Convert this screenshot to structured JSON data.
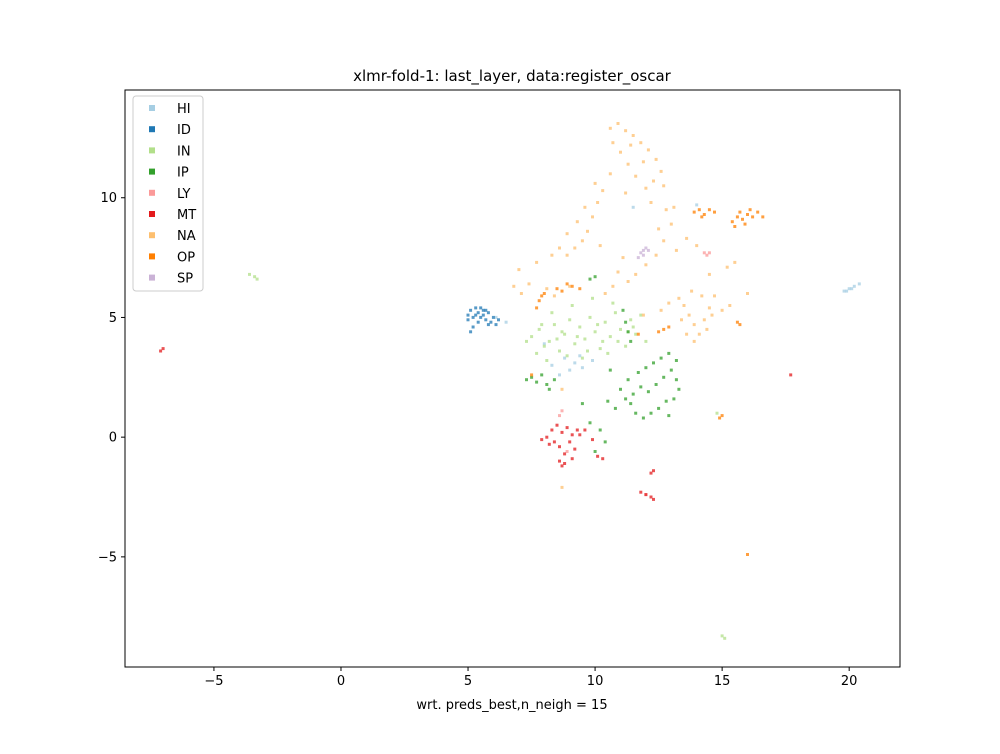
{
  "chart_data": {
    "type": "scatter",
    "title": "xlmr-fold-1: last_layer, data:register_oscar",
    "xlabel": "wrt. preds_best,n_neigh = 15",
    "ylabel": "",
    "xlim": [
      -8.5,
      22.0
    ],
    "ylim": [
      -9.6,
      14.5
    ],
    "xticks": [
      -5,
      0,
      5,
      10,
      15,
      20
    ],
    "xtick_labels": [
      "−5",
      "0",
      "5",
      "10",
      "15",
      "20"
    ],
    "yticks": [
      -5,
      0,
      5,
      10
    ],
    "ytick_labels": [
      "−5",
      "0",
      "5",
      "10"
    ],
    "grid": false,
    "legend_position": "top-left",
    "series": [
      {
        "name": "HI",
        "color": "#a6cee3",
        "points": [
          [
            9.2,
            3.1
          ],
          [
            9.5,
            2.9
          ],
          [
            8.8,
            3.3
          ],
          [
            9.0,
            2.8
          ],
          [
            9.4,
            3.4
          ],
          [
            8.3,
            3.0
          ],
          [
            9.9,
            3.2
          ],
          [
            11.5,
            9.6
          ],
          [
            14.0,
            9.7
          ],
          [
            19.8,
            6.1
          ],
          [
            20.0,
            6.2
          ],
          [
            20.2,
            6.3
          ],
          [
            20.4,
            6.4
          ],
          [
            20.1,
            6.2
          ],
          [
            19.9,
            6.1
          ],
          [
            6.1,
            5.0
          ],
          [
            6.5,
            4.8
          ],
          [
            8.0,
            3.9
          ],
          [
            8.6,
            2.6
          ]
        ]
      },
      {
        "name": "ID",
        "color": "#1f78b4",
        "points": [
          [
            5.0,
            5.1
          ],
          [
            5.1,
            5.3
          ],
          [
            5.2,
            5.0
          ],
          [
            5.3,
            5.4
          ],
          [
            5.4,
            5.2
          ],
          [
            5.5,
            5.4
          ],
          [
            5.6,
            5.1
          ],
          [
            5.7,
            4.9
          ],
          [
            5.8,
            5.2
          ],
          [
            5.9,
            4.8
          ],
          [
            6.0,
            5.0
          ],
          [
            6.1,
            4.7
          ],
          [
            5.2,
            4.6
          ],
          [
            5.1,
            4.4
          ],
          [
            5.4,
            4.8
          ],
          [
            5.3,
            5.1
          ],
          [
            5.6,
            5.3
          ],
          [
            5.8,
            4.7
          ],
          [
            5.0,
            4.9
          ],
          [
            6.2,
            4.9
          ],
          [
            5.5,
            5.0
          ],
          [
            5.7,
            5.3
          ]
        ]
      },
      {
        "name": "IN",
        "color": "#b2df8a",
        "points": [
          [
            7.5,
            4.2
          ],
          [
            7.8,
            4.5
          ],
          [
            8.0,
            3.8
          ],
          [
            8.2,
            4.0
          ],
          [
            8.4,
            4.7
          ],
          [
            8.6,
            3.6
          ],
          [
            8.8,
            4.3
          ],
          [
            9.0,
            4.9
          ],
          [
            9.2,
            3.9
          ],
          [
            9.4,
            4.6
          ],
          [
            9.6,
            4.1
          ],
          [
            9.8,
            5.0
          ],
          [
            10.0,
            4.4
          ],
          [
            10.2,
            3.7
          ],
          [
            10.4,
            4.8
          ],
          [
            10.6,
            4.2
          ],
          [
            10.8,
            5.2
          ],
          [
            11.0,
            4.5
          ],
          [
            11.2,
            3.8
          ],
          [
            11.4,
            4.9
          ],
          [
            11.6,
            4.3
          ],
          [
            11.8,
            5.1
          ],
          [
            12.0,
            4.0
          ],
          [
            7.7,
            3.5
          ],
          [
            8.1,
            3.2
          ],
          [
            8.5,
            4.1
          ],
          [
            8.9,
            3.4
          ],
          [
            9.3,
            4.2
          ],
          [
            9.7,
            3.6
          ],
          [
            10.1,
            4.7
          ],
          [
            10.5,
            3.5
          ],
          [
            10.9,
            4.0
          ],
          [
            11.3,
            4.4
          ],
          [
            7.9,
            4.7
          ],
          [
            8.3,
            5.2
          ],
          [
            9.1,
            5.5
          ],
          [
            9.9,
            5.8
          ],
          [
            10.7,
            5.6
          ],
          [
            11.5,
            4.6
          ],
          [
            8.7,
            4.4
          ],
          [
            9.5,
            3.3
          ],
          [
            10.3,
            4.0
          ],
          [
            -3.6,
            6.8
          ],
          [
            -3.4,
            6.7
          ],
          [
            -3.3,
            6.6
          ],
          [
            15.0,
            -8.3
          ],
          [
            15.1,
            -8.4
          ],
          [
            14.8,
            1.0
          ],
          [
            7.3,
            4.0
          ]
        ]
      },
      {
        "name": "IP",
        "color": "#33a02c",
        "points": [
          [
            7.3,
            2.4
          ],
          [
            7.5,
            2.5
          ],
          [
            7.7,
            2.3
          ],
          [
            7.9,
            2.6
          ],
          [
            8.1,
            2.2
          ],
          [
            8.2,
            2.0
          ],
          [
            8.4,
            2.4
          ],
          [
            11.2,
            1.6
          ],
          [
            11.5,
            1.8
          ],
          [
            11.8,
            2.1
          ],
          [
            12.1,
            1.9
          ],
          [
            12.4,
            2.2
          ],
          [
            12.7,
            2.5
          ],
          [
            13.0,
            2.8
          ],
          [
            13.2,
            2.4
          ],
          [
            13.3,
            2.0
          ],
          [
            13.1,
            1.6
          ],
          [
            12.8,
            1.5
          ],
          [
            12.5,
            1.2
          ],
          [
            12.2,
            1.0
          ],
          [
            11.9,
            0.8
          ],
          [
            11.6,
            1.0
          ],
          [
            11.4,
            1.4
          ],
          [
            11.3,
            2.4
          ],
          [
            11.7,
            2.7
          ],
          [
            12.0,
            2.9
          ],
          [
            12.3,
            3.1
          ],
          [
            12.6,
            3.3
          ],
          [
            12.9,
            3.5
          ],
          [
            13.2,
            3.2
          ],
          [
            10.5,
            1.5
          ],
          [
            10.8,
            1.2
          ],
          [
            11.0,
            2.0
          ],
          [
            11.1,
            5.3
          ],
          [
            11.2,
            4.8
          ],
          [
            11.3,
            4.4
          ],
          [
            11.4,
            4.0
          ],
          [
            9.8,
            6.6
          ],
          [
            10.0,
            6.7
          ],
          [
            9.5,
            1.4
          ],
          [
            9.8,
            0.6
          ],
          [
            10.2,
            0.3
          ],
          [
            10.4,
            -0.2
          ],
          [
            10.0,
            -0.6
          ],
          [
            12.9,
            0.9
          ],
          [
            10.6,
            2.8
          ]
        ]
      },
      {
        "name": "LY",
        "color": "#fb9a99",
        "points": [
          [
            14.3,
            7.7
          ],
          [
            14.4,
            7.6
          ],
          [
            14.5,
            7.7
          ],
          [
            8.6,
            0.9
          ],
          [
            8.7,
            1.1
          ],
          [
            12.0,
            -2.4
          ],
          [
            8.9,
            -0.6
          ]
        ]
      },
      {
        "name": "MT",
        "color": "#e31a1c",
        "points": [
          [
            7.9,
            -0.1
          ],
          [
            8.1,
            0.0
          ],
          [
            8.3,
            0.3
          ],
          [
            8.4,
            -0.2
          ],
          [
            8.5,
            0.5
          ],
          [
            8.6,
            -0.4
          ],
          [
            8.7,
            0.2
          ],
          [
            8.8,
            -0.7
          ],
          [
            8.9,
            0.4
          ],
          [
            9.0,
            -0.2
          ],
          [
            9.1,
            0.1
          ],
          [
            9.2,
            -0.5
          ],
          [
            9.3,
            0.3
          ],
          [
            8.6,
            -1.0
          ],
          [
            8.7,
            -1.2
          ],
          [
            8.8,
            -1.1
          ],
          [
            9.1,
            -0.9
          ],
          [
            9.4,
            0.1
          ],
          [
            8.2,
            -0.3
          ],
          [
            10.1,
            -0.8
          ],
          [
            10.3,
            -0.9
          ],
          [
            12.3,
            -1.4
          ],
          [
            12.2,
            -1.5
          ],
          [
            11.8,
            -2.3
          ],
          [
            12.0,
            -2.4
          ],
          [
            12.2,
            -2.5
          ],
          [
            12.3,
            -2.6
          ],
          [
            -7.1,
            3.6
          ],
          [
            -7.0,
            3.7
          ],
          [
            17.7,
            2.6
          ],
          [
            9.6,
            0.3
          ],
          [
            9.9,
            -0.1
          ]
        ]
      },
      {
        "name": "NA",
        "color": "#fdbf6f",
        "points": [
          [
            10.6,
            12.9
          ],
          [
            10.9,
            13.1
          ],
          [
            11.2,
            12.8
          ],
          [
            11.5,
            12.6
          ],
          [
            11.8,
            12.3
          ],
          [
            12.1,
            12.0
          ],
          [
            12.4,
            11.6
          ],
          [
            12.6,
            11.1
          ],
          [
            12.3,
            10.7
          ],
          [
            12.0,
            10.4
          ],
          [
            11.6,
            10.9
          ],
          [
            11.3,
            11.4
          ],
          [
            11.0,
            11.9
          ],
          [
            10.7,
            12.3
          ],
          [
            11.4,
            12.2
          ],
          [
            11.9,
            11.5
          ],
          [
            12.7,
            10.5
          ],
          [
            12.2,
            9.8
          ],
          [
            11.2,
            10.2
          ],
          [
            10.6,
            11.0
          ],
          [
            10.3,
            10.3
          ],
          [
            10.1,
            9.8
          ],
          [
            9.9,
            9.2
          ],
          [
            9.7,
            8.6
          ],
          [
            9.5,
            8.2
          ],
          [
            9.2,
            7.9
          ],
          [
            8.9,
            7.6
          ],
          [
            8.6,
            7.9
          ],
          [
            8.3,
            7.6
          ],
          [
            8.9,
            8.5
          ],
          [
            9.3,
            9.0
          ],
          [
            9.6,
            9.6
          ],
          [
            10.0,
            10.6
          ],
          [
            12.8,
            9.5
          ],
          [
            13.0,
            8.9
          ],
          [
            12.7,
            8.2
          ],
          [
            12.4,
            7.6
          ],
          [
            12.0,
            7.2
          ],
          [
            11.6,
            6.8
          ],
          [
            11.3,
            6.5
          ],
          [
            10.9,
            6.9
          ],
          [
            11.1,
            7.5
          ],
          [
            13.3,
            5.8
          ],
          [
            13.5,
            5.5
          ],
          [
            13.7,
            5.1
          ],
          [
            13.9,
            4.7
          ],
          [
            14.1,
            4.3
          ],
          [
            14.3,
            4.9
          ],
          [
            14.5,
            5.4
          ],
          [
            14.2,
            5.9
          ],
          [
            13.8,
            6.1
          ],
          [
            13.4,
            4.9
          ],
          [
            13.6,
            4.3
          ],
          [
            13.9,
            4.0
          ],
          [
            14.4,
            4.5
          ],
          [
            14.6,
            5.1
          ],
          [
            15.0,
            5.3
          ],
          [
            15.3,
            5.5
          ],
          [
            6.8,
            6.3
          ],
          [
            7.1,
            6.0
          ],
          [
            7.4,
            6.4
          ],
          [
            8.1,
            6.2
          ],
          [
            8.4,
            5.9
          ],
          [
            9.0,
            6.3
          ],
          [
            10.4,
            6.0
          ],
          [
            10.7,
            6.3
          ],
          [
            11.9,
            5.1
          ],
          [
            12.6,
            5.3
          ],
          [
            12.9,
            5.6
          ],
          [
            8.7,
            2.0
          ],
          [
            14.5,
            6.8
          ],
          [
            15.2,
            7.1
          ],
          [
            15.5,
            7.3
          ],
          [
            13.2,
            7.8
          ],
          [
            13.6,
            8.3
          ],
          [
            14.0,
            8.0
          ],
          [
            8.7,
            -2.1
          ],
          [
            7.0,
            7.0
          ],
          [
            7.7,
            7.3
          ],
          [
            10.2,
            8.0
          ],
          [
            12.5,
            8.7
          ],
          [
            13.1,
            9.6
          ],
          [
            14.7,
            5.9
          ],
          [
            16.0,
            6.0
          ]
        ]
      },
      {
        "name": "OP",
        "color": "#ff7f00",
        "points": [
          [
            13.9,
            9.4
          ],
          [
            14.1,
            9.5
          ],
          [
            14.3,
            9.3
          ],
          [
            14.5,
            9.5
          ],
          [
            14.7,
            9.4
          ],
          [
            14.2,
            9.2
          ],
          [
            15.4,
            9.0
          ],
          [
            15.6,
            9.2
          ],
          [
            15.8,
            9.1
          ],
          [
            16.0,
            9.3
          ],
          [
            16.2,
            9.2
          ],
          [
            16.4,
            9.4
          ],
          [
            16.6,
            9.2
          ],
          [
            15.5,
            8.8
          ],
          [
            15.9,
            8.9
          ],
          [
            16.1,
            9.5
          ],
          [
            15.7,
            9.4
          ],
          [
            7.8,
            5.7
          ],
          [
            7.9,
            5.9
          ],
          [
            8.0,
            6.0
          ],
          [
            8.5,
            6.2
          ],
          [
            8.7,
            6.1
          ],
          [
            8.9,
            6.4
          ],
          [
            9.1,
            6.3
          ],
          [
            9.4,
            6.2
          ],
          [
            12.5,
            4.4
          ],
          [
            12.7,
            4.5
          ],
          [
            12.9,
            4.6
          ],
          [
            11.7,
            4.3
          ],
          [
            15.6,
            4.8
          ],
          [
            15.7,
            4.7
          ],
          [
            14.9,
            0.8
          ],
          [
            15.0,
            0.9
          ],
          [
            16.0,
            -4.9
          ],
          [
            7.7,
            5.4
          ],
          [
            7.5,
            2.6
          ]
        ]
      },
      {
        "name": "SP",
        "color": "#cab2d6",
        "points": [
          [
            11.8,
            7.7
          ],
          [
            11.9,
            7.8
          ],
          [
            12.0,
            7.9
          ],
          [
            12.1,
            7.8
          ],
          [
            11.9,
            7.6
          ],
          [
            11.7,
            7.5
          ]
        ]
      }
    ]
  }
}
